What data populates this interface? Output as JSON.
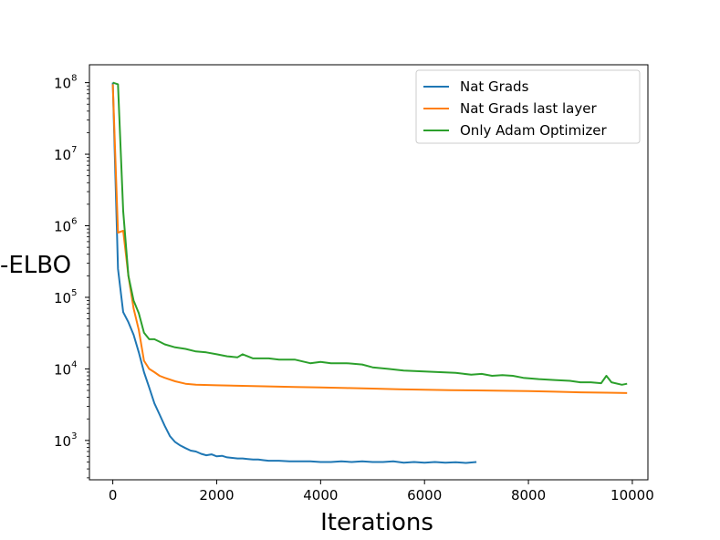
{
  "chart_data": {
    "type": "line",
    "xlabel": "Iterations",
    "ylabel": "-ELBO",
    "xlim": [
      -450,
      10300
    ],
    "ylim_log10": [
      2.45,
      8.25
    ],
    "yscale": "log",
    "x_ticks": [
      {
        "value": 0,
        "label": "0"
      },
      {
        "value": 2000,
        "label": "2000"
      },
      {
        "value": 4000,
        "label": "4000"
      },
      {
        "value": 6000,
        "label": "6000"
      },
      {
        "value": 8000,
        "label": "8000"
      },
      {
        "value": 10000,
        "label": "10000"
      }
    ],
    "y_ticks": [
      {
        "exp": 3,
        "base": "10",
        "sup": "3"
      },
      {
        "exp": 4,
        "base": "10",
        "sup": "4"
      },
      {
        "exp": 5,
        "base": "10",
        "sup": "5"
      },
      {
        "exp": 6,
        "base": "10",
        "sup": "6"
      },
      {
        "exp": 7,
        "base": "10",
        "sup": "7"
      },
      {
        "exp": 8,
        "base": "10",
        "sup": "8"
      }
    ],
    "grid": false,
    "legend_position": "top-right",
    "series": [
      {
        "name": "Nat Grads",
        "color": "#1f77b4",
        "x": [
          0,
          100,
          200,
          300,
          400,
          500,
          600,
          700,
          800,
          900,
          1000,
          1100,
          1200,
          1300,
          1400,
          1500,
          1600,
          1700,
          1800,
          1900,
          2000,
          2100,
          2200,
          2300,
          2400,
          2500,
          2600,
          2700,
          2800,
          2900,
          3000,
          3200,
          3400,
          3600,
          3800,
          4000,
          4200,
          4400,
          4600,
          4800,
          5000,
          5200,
          5400,
          5600,
          5800,
          6000,
          6200,
          6400,
          6600,
          6800,
          7000
        ],
        "y": [
          100000000,
          250000,
          62000,
          45000,
          30000,
          17000,
          9000,
          5500,
          3300,
          2300,
          1600,
          1150,
          950,
          850,
          780,
          720,
          700,
          650,
          620,
          640,
          600,
          610,
          580,
          570,
          560,
          560,
          550,
          540,
          540,
          530,
          520,
          520,
          510,
          510,
          510,
          500,
          500,
          510,
          500,
          510,
          500,
          500,
          510,
          490,
          500,
          490,
          500,
          490,
          495,
          485,
          500
        ]
      },
      {
        "name": "Nat Grads last layer",
        "color": "#ff7f0e",
        "x": [
          0,
          100,
          200,
          300,
          400,
          500,
          600,
          700,
          800,
          900,
          1000,
          1200,
          1400,
          1600,
          2000,
          2500,
          3000,
          3500,
          4000,
          4500,
          5000,
          5500,
          6000,
          6500,
          7000,
          7500,
          8000,
          8500,
          9000,
          9500,
          9900
        ],
        "y": [
          95000000,
          800000,
          850000,
          200000,
          70000,
          35000,
          13000,
          10000,
          9000,
          8000,
          7500,
          6700,
          6200,
          6000,
          5900,
          5800,
          5700,
          5600,
          5500,
          5400,
          5300,
          5200,
          5100,
          5050,
          5000,
          4950,
          4900,
          4800,
          4700,
          4650,
          4600
        ]
      },
      {
        "name": "Only Adam Optimizer",
        "color": "#2ca02c",
        "x": [
          0,
          100,
          200,
          300,
          400,
          500,
          600,
          700,
          800,
          900,
          1000,
          1200,
          1400,
          1600,
          1800,
          2000,
          2200,
          2400,
          2500,
          2700,
          3000,
          3200,
          3500,
          3800,
          4000,
          4200,
          4500,
          4800,
          5000,
          5300,
          5600,
          6000,
          6300,
          6600,
          6900,
          7100,
          7300,
          7500,
          7700,
          7900,
          8200,
          8500,
          8800,
          9000,
          9200,
          9400,
          9500,
          9600,
          9800,
          9900
        ],
        "y": [
          100000000,
          95000000,
          1600000,
          200000,
          90000,
          60000,
          32000,
          26000,
          26000,
          24000,
          22000,
          20000,
          19000,
          17500,
          17000,
          16000,
          15000,
          14500,
          16000,
          14000,
          14000,
          13500,
          13500,
          12000,
          12500,
          12000,
          12000,
          11500,
          10500,
          10000,
          9500,
          9200,
          9000,
          8800,
          8300,
          8500,
          8000,
          8200,
          8000,
          7500,
          7200,
          7000,
          6800,
          6500,
          6500,
          6300,
          8000,
          6500,
          6000,
          6200
        ]
      }
    ]
  }
}
